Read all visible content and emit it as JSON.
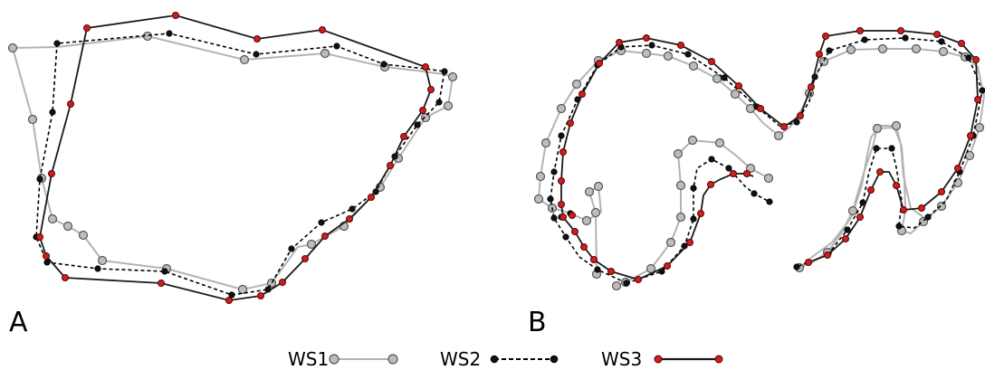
{
  "panels": [
    {
      "id": "A",
      "label": "A"
    },
    {
      "id": "B",
      "label": "B"
    }
  ],
  "legend": [
    {
      "label": "WS1"
    },
    {
      "label": "WS2"
    },
    {
      "label": "WS3"
    }
  ],
  "series_style": {
    "WS1": {
      "line_color": "#b3b3b3",
      "marker_fill": "#bdbdbd",
      "marker_stroke": "#555555",
      "dash": "solid"
    },
    "WS2": {
      "line_color": "#000000",
      "marker_fill": "#111111",
      "marker_stroke": "#000000",
      "dash": "dashed"
    },
    "WS3": {
      "line_color": "#1a1a1a",
      "marker_fill": "#cc1f1f",
      "marker_stroke": "#5a0000",
      "dash": "solid"
    }
  }
}
